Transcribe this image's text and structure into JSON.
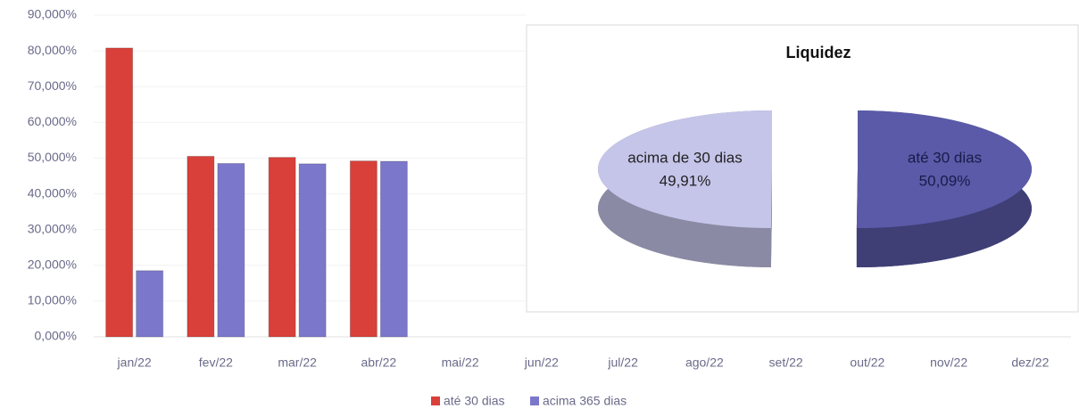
{
  "chart_data": [
    {
      "type": "bar",
      "categories": [
        "jan/22",
        "fev/22",
        "mar/22",
        "abr/22",
        "mai/22",
        "jun/22",
        "jul/22",
        "ago/22",
        "set/22",
        "out/22",
        "nov/22",
        "dez/22"
      ],
      "series": [
        {
          "name": "até 30 dias",
          "color": "#d9403a",
          "values": [
            80.8,
            50.5,
            50.2,
            49.2,
            null,
            null,
            null,
            null,
            null,
            null,
            null,
            null
          ]
        },
        {
          "name": "acima 365 dias",
          "color": "#7b78cc",
          "values": [
            18.5,
            48.5,
            48.4,
            49.1,
            null,
            null,
            null,
            null,
            null,
            null,
            null,
            null
          ]
        }
      ],
      "ylim": [
        0,
        90
      ],
      "yticks": [
        {
          "value": 0,
          "label": "0,000%"
        },
        {
          "value": 10,
          "label": "10,000%"
        },
        {
          "value": 20,
          "label": "20,000%"
        },
        {
          "value": 30,
          "label": "30,000%"
        },
        {
          "value": 40,
          "label": "40,000%"
        },
        {
          "value": 50,
          "label": "50,000%"
        },
        {
          "value": 60,
          "label": "60,000%"
        },
        {
          "value": 70,
          "label": "70,000%"
        },
        {
          "value": 80,
          "label": "80,000%"
        },
        {
          "value": 90,
          "label": "90,000%"
        }
      ],
      "legend": "bottom"
    },
    {
      "type": "pie",
      "title": "Liquidez",
      "categories": [
        "até 30 dias",
        "acima de 30 dias"
      ],
      "values": [
        50.09,
        49.91
      ],
      "value_labels": [
        "50,09%",
        "49,91%"
      ],
      "colors": [
        "#5a5aa8",
        "#c5c5ea"
      ]
    }
  ]
}
